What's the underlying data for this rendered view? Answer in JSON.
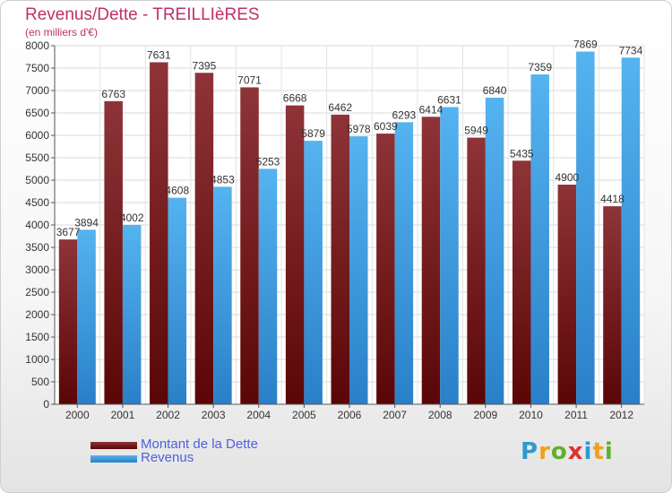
{
  "title": "Revenus/Dette - TREILLIèRES",
  "subtitle": "(en milliers d'€)",
  "logo": {
    "text": "Proxiti",
    "letters": [
      "P",
      "r",
      "o",
      "x",
      "i",
      "t",
      "i"
    ],
    "colors": [
      "#2e9ad0",
      "#f0a020",
      "#60b030",
      "#e03030",
      "#2e9ad0",
      "#f0a020",
      "#60b030"
    ]
  },
  "colors": {
    "dette": "#8a1e24",
    "revenus": "#3ea2e8",
    "title": "#c0306a",
    "legend_text": "#4d5fe0"
  },
  "chart_data": {
    "type": "bar",
    "title": "Revenus/Dette - TREILLIèRES",
    "subtitle": "(en milliers d'€)",
    "categories": [
      "2000",
      "2001",
      "2002",
      "2003",
      "2004",
      "2005",
      "2006",
      "2007",
      "2008",
      "2009",
      "2010",
      "2011",
      "2012"
    ],
    "series": [
      {
        "name": "Montant de la Dette",
        "values": [
          3677,
          6763,
          7631,
          7395,
          7071,
          6668,
          6462,
          6039,
          6414,
          5949,
          5435,
          4900,
          4418
        ]
      },
      {
        "name": "Revenus",
        "values": [
          3894,
          4002,
          4608,
          4853,
          5253,
          5879,
          5978,
          6293,
          6631,
          6840,
          7359,
          7869,
          7734
        ]
      }
    ],
    "ylim": [
      0,
      8000
    ],
    "yticks": [
      0,
      500,
      1000,
      1500,
      2000,
      2500,
      3000,
      3500,
      4000,
      4500,
      5000,
      5500,
      6000,
      6500,
      7000,
      7500,
      8000
    ],
    "grid": true,
    "legend_position": "bottom-left"
  }
}
